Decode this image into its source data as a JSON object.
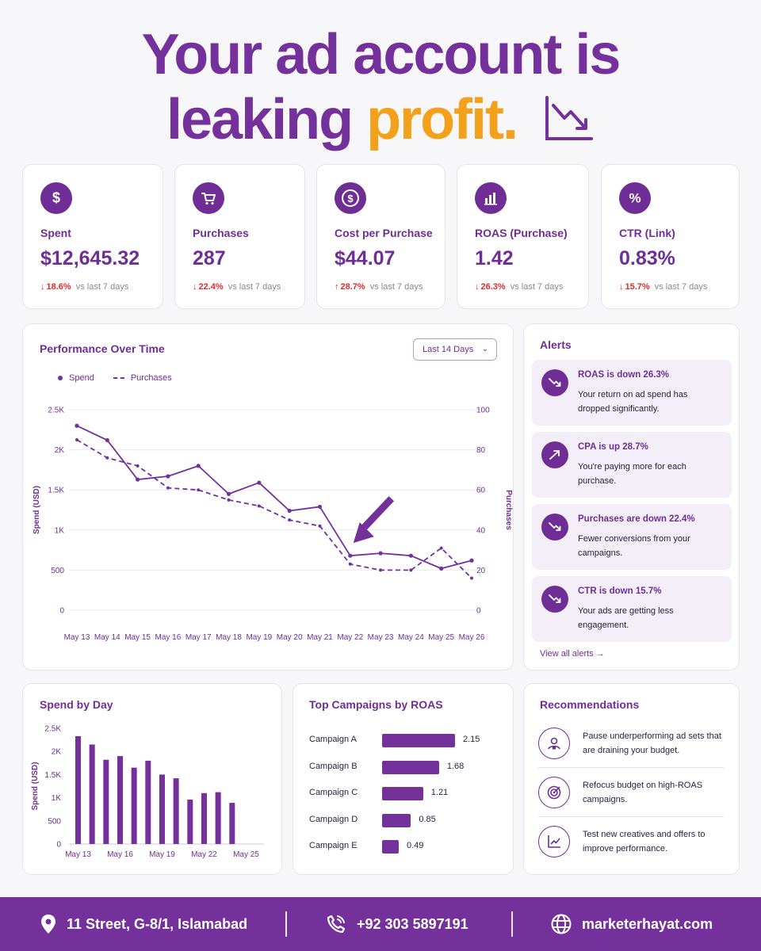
{
  "headline": {
    "line1": "Your ad account is",
    "line2_plain": "leaking ",
    "line2_accent": "profit.",
    "icon": "trend-down-icon"
  },
  "kpis": [
    {
      "icon": "dollar-icon",
      "label": "Spent",
      "value": "$12,645.32",
      "direction": "down",
      "arrow": "↓",
      "delta": "18.6%",
      "compare": "vs last 7 days"
    },
    {
      "icon": "cart-icon",
      "label": "Purchases",
      "value": "287",
      "direction": "down",
      "arrow": "↓",
      "delta": "22.4%",
      "compare": "vs last 7 days"
    },
    {
      "icon": "dollar-circle-icon",
      "label": "Cost per Purchase",
      "value": "$44.07",
      "direction": "up",
      "arrow": "↑",
      "delta": "28.7%",
      "compare": "vs last 7 days"
    },
    {
      "icon": "bar-chart-icon",
      "label": "ROAS (Purchase)",
      "value": "1.42",
      "direction": "down",
      "arrow": "↓",
      "delta": "26.3%",
      "compare": "vs last 7 days"
    },
    {
      "icon": "percent-icon",
      "label": "CTR (Link)",
      "value": "0.83%",
      "direction": "down",
      "arrow": "↓",
      "delta": "15.7%",
      "compare": "vs last 7 days"
    }
  ],
  "performance": {
    "title": "Performance Over Time",
    "range_selector": "Last 14 Days",
    "legend": {
      "spend": "Spend",
      "purchases": "Purchases"
    }
  },
  "alerts": {
    "title": "Alerts",
    "items": [
      {
        "icon": "trend-down-icon",
        "title": "ROAS is down 26.3%",
        "desc": "Your return on ad spend has dropped significantly."
      },
      {
        "icon": "trend-up-icon",
        "title": "CPA is up 28.7%",
        "desc": "You're paying more for each purchase."
      },
      {
        "icon": "trend-down-icon",
        "title": "Purchases are down 22.4%",
        "desc": "Fewer conversions from your campaigns."
      },
      {
        "icon": "trend-down-icon",
        "title": "CTR is down 15.7%",
        "desc": "Your ads are getting less engagement."
      }
    ],
    "view_all": "View all alerts →"
  },
  "spend_by_day": {
    "title": "Spend by Day"
  },
  "top_campaigns": {
    "title": "Top Campaigns by ROAS"
  },
  "recommendations": {
    "title": "Recommendations",
    "items": [
      {
        "icon": "user-pause-icon",
        "text": "Pause underperforming ad sets that are draining your budget."
      },
      {
        "icon": "target-icon",
        "text": "Refocus budget on high-ROAS campaigns."
      },
      {
        "icon": "chart-growth-icon",
        "text": "Test new creatives and offers to improve performance."
      }
    ]
  },
  "footer": {
    "address": "11 Street, G-8/1, Islamabad",
    "phone": "+92 303 5897191",
    "website": "marketerhayat.com"
  },
  "colors": {
    "primary": "#74309b",
    "accent": "#f3a01a",
    "negative": "#e02c2c",
    "card_bg": "#ffffff",
    "page_bg": "#f7f6f9"
  },
  "chart_data": [
    {
      "type": "line",
      "title": "Performance Over Time",
      "x": [
        "May 13",
        "May 14",
        "May 15",
        "May 16",
        "May 17",
        "May 18",
        "May 19",
        "May 20",
        "May 21",
        "May 22",
        "May 23",
        "May 24",
        "May 25",
        "May 26"
      ],
      "series": [
        {
          "name": "Spend",
          "axis": "left",
          "style": "solid",
          "values": [
            2300,
            2120,
            1630,
            1670,
            1800,
            1450,
            1590,
            1240,
            1290,
            680,
            710,
            680,
            520,
            620
          ]
        },
        {
          "name": "Purchases",
          "axis": "right",
          "style": "dashed",
          "values": [
            85,
            76,
            72,
            61,
            60,
            55,
            52,
            45,
            42,
            23,
            20,
            20,
            31,
            16
          ]
        }
      ],
      "ylabel": "Spend (USD)",
      "ylabel_right": "Purchases",
      "yticks_left": [
        "0",
        "500",
        "1K",
        "1.5K",
        "2K",
        "2.5K"
      ],
      "ylim": [
        0,
        2500
      ],
      "yticks_right": [
        "0",
        "20",
        "40",
        "60",
        "80",
        "100"
      ],
      "ylim_right": [
        0,
        100
      ],
      "grid": true,
      "legend": "top-left"
    },
    {
      "type": "bar",
      "title": "Spend by Day",
      "categories": [
        "May 13",
        "May 14",
        "May 15",
        "May 16",
        "May 17",
        "May 18",
        "May 19",
        "May 20",
        "May 21",
        "May 22",
        "May 23",
        "May 24",
        "May 25",
        "May 26"
      ],
      "xtick_labels": [
        "May 13",
        "May 16",
        "May 19",
        "May 22",
        "May 25"
      ],
      "values": [
        2330,
        2150,
        1820,
        1900,
        1650,
        1800,
        1500,
        1420,
        960,
        1100,
        1120,
        890,
        0,
        0
      ],
      "ylabel": "Spend (USD)",
      "yticks": [
        "0",
        "500",
        "1K",
        "1.5K",
        "2K",
        "2.5K"
      ],
      "ylim": [
        0,
        2500
      ]
    },
    {
      "type": "bar",
      "orientation": "horizontal",
      "title": "Top Campaigns by ROAS",
      "categories": [
        "Campaign A",
        "Campaign B",
        "Campaign C",
        "Campaign D",
        "Campaign E"
      ],
      "values": [
        2.15,
        1.68,
        1.21,
        0.85,
        0.49
      ]
    }
  ]
}
